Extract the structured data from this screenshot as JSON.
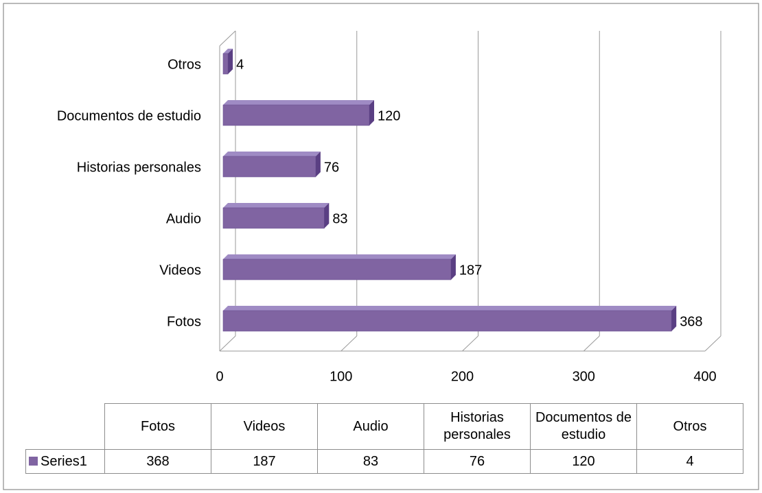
{
  "chart_data": {
    "type": "bar3d_horizontal",
    "categories": [
      "Fotos",
      "Videos",
      "Audio",
      "Historias personales",
      "Documentos de estudio",
      "Otros"
    ],
    "series": [
      {
        "name": "Series1",
        "color": "#8064a2",
        "values": [
          368,
          187,
          83,
          76,
          120,
          4
        ]
      }
    ],
    "xlim": [
      0,
      400
    ],
    "xticks": [
      0,
      100,
      200,
      300,
      400
    ],
    "grid": true,
    "data_table": true
  }
}
